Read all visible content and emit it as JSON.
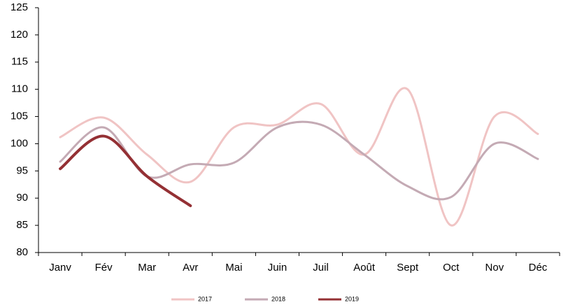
{
  "chart_data": {
    "type": "line",
    "categories": [
      "Janv",
      "Fév",
      "Mar",
      "Avr",
      "Mai",
      "Juin",
      "Juil",
      "Août",
      "Sept",
      "Oct",
      "Nov",
      "Déc"
    ],
    "series": [
      {
        "name": "2017",
        "color": "#f0c4c4",
        "values": [
          101.2,
          104.8,
          98,
          93,
          103,
          103.5,
          107.3,
          98,
          110,
          85,
          105,
          101.8
        ]
      },
      {
        "name": "2018",
        "color": "#c4aab4",
        "values": [
          96.7,
          103,
          94,
          96.2,
          96.5,
          103,
          103.5,
          98,
          92.2,
          90.2,
          100,
          97.2
        ]
      },
      {
        "name": "2019",
        "color": "#943034",
        "values": [
          95.4,
          101.4,
          94,
          88.6,
          null,
          null,
          null,
          null,
          null,
          null,
          null,
          null
        ]
      }
    ],
    "ylim": [
      80,
      125
    ],
    "yticks": [
      80,
      85,
      90,
      95,
      100,
      105,
      110,
      115,
      120,
      125
    ],
    "grid": false,
    "legend": "bottom"
  }
}
